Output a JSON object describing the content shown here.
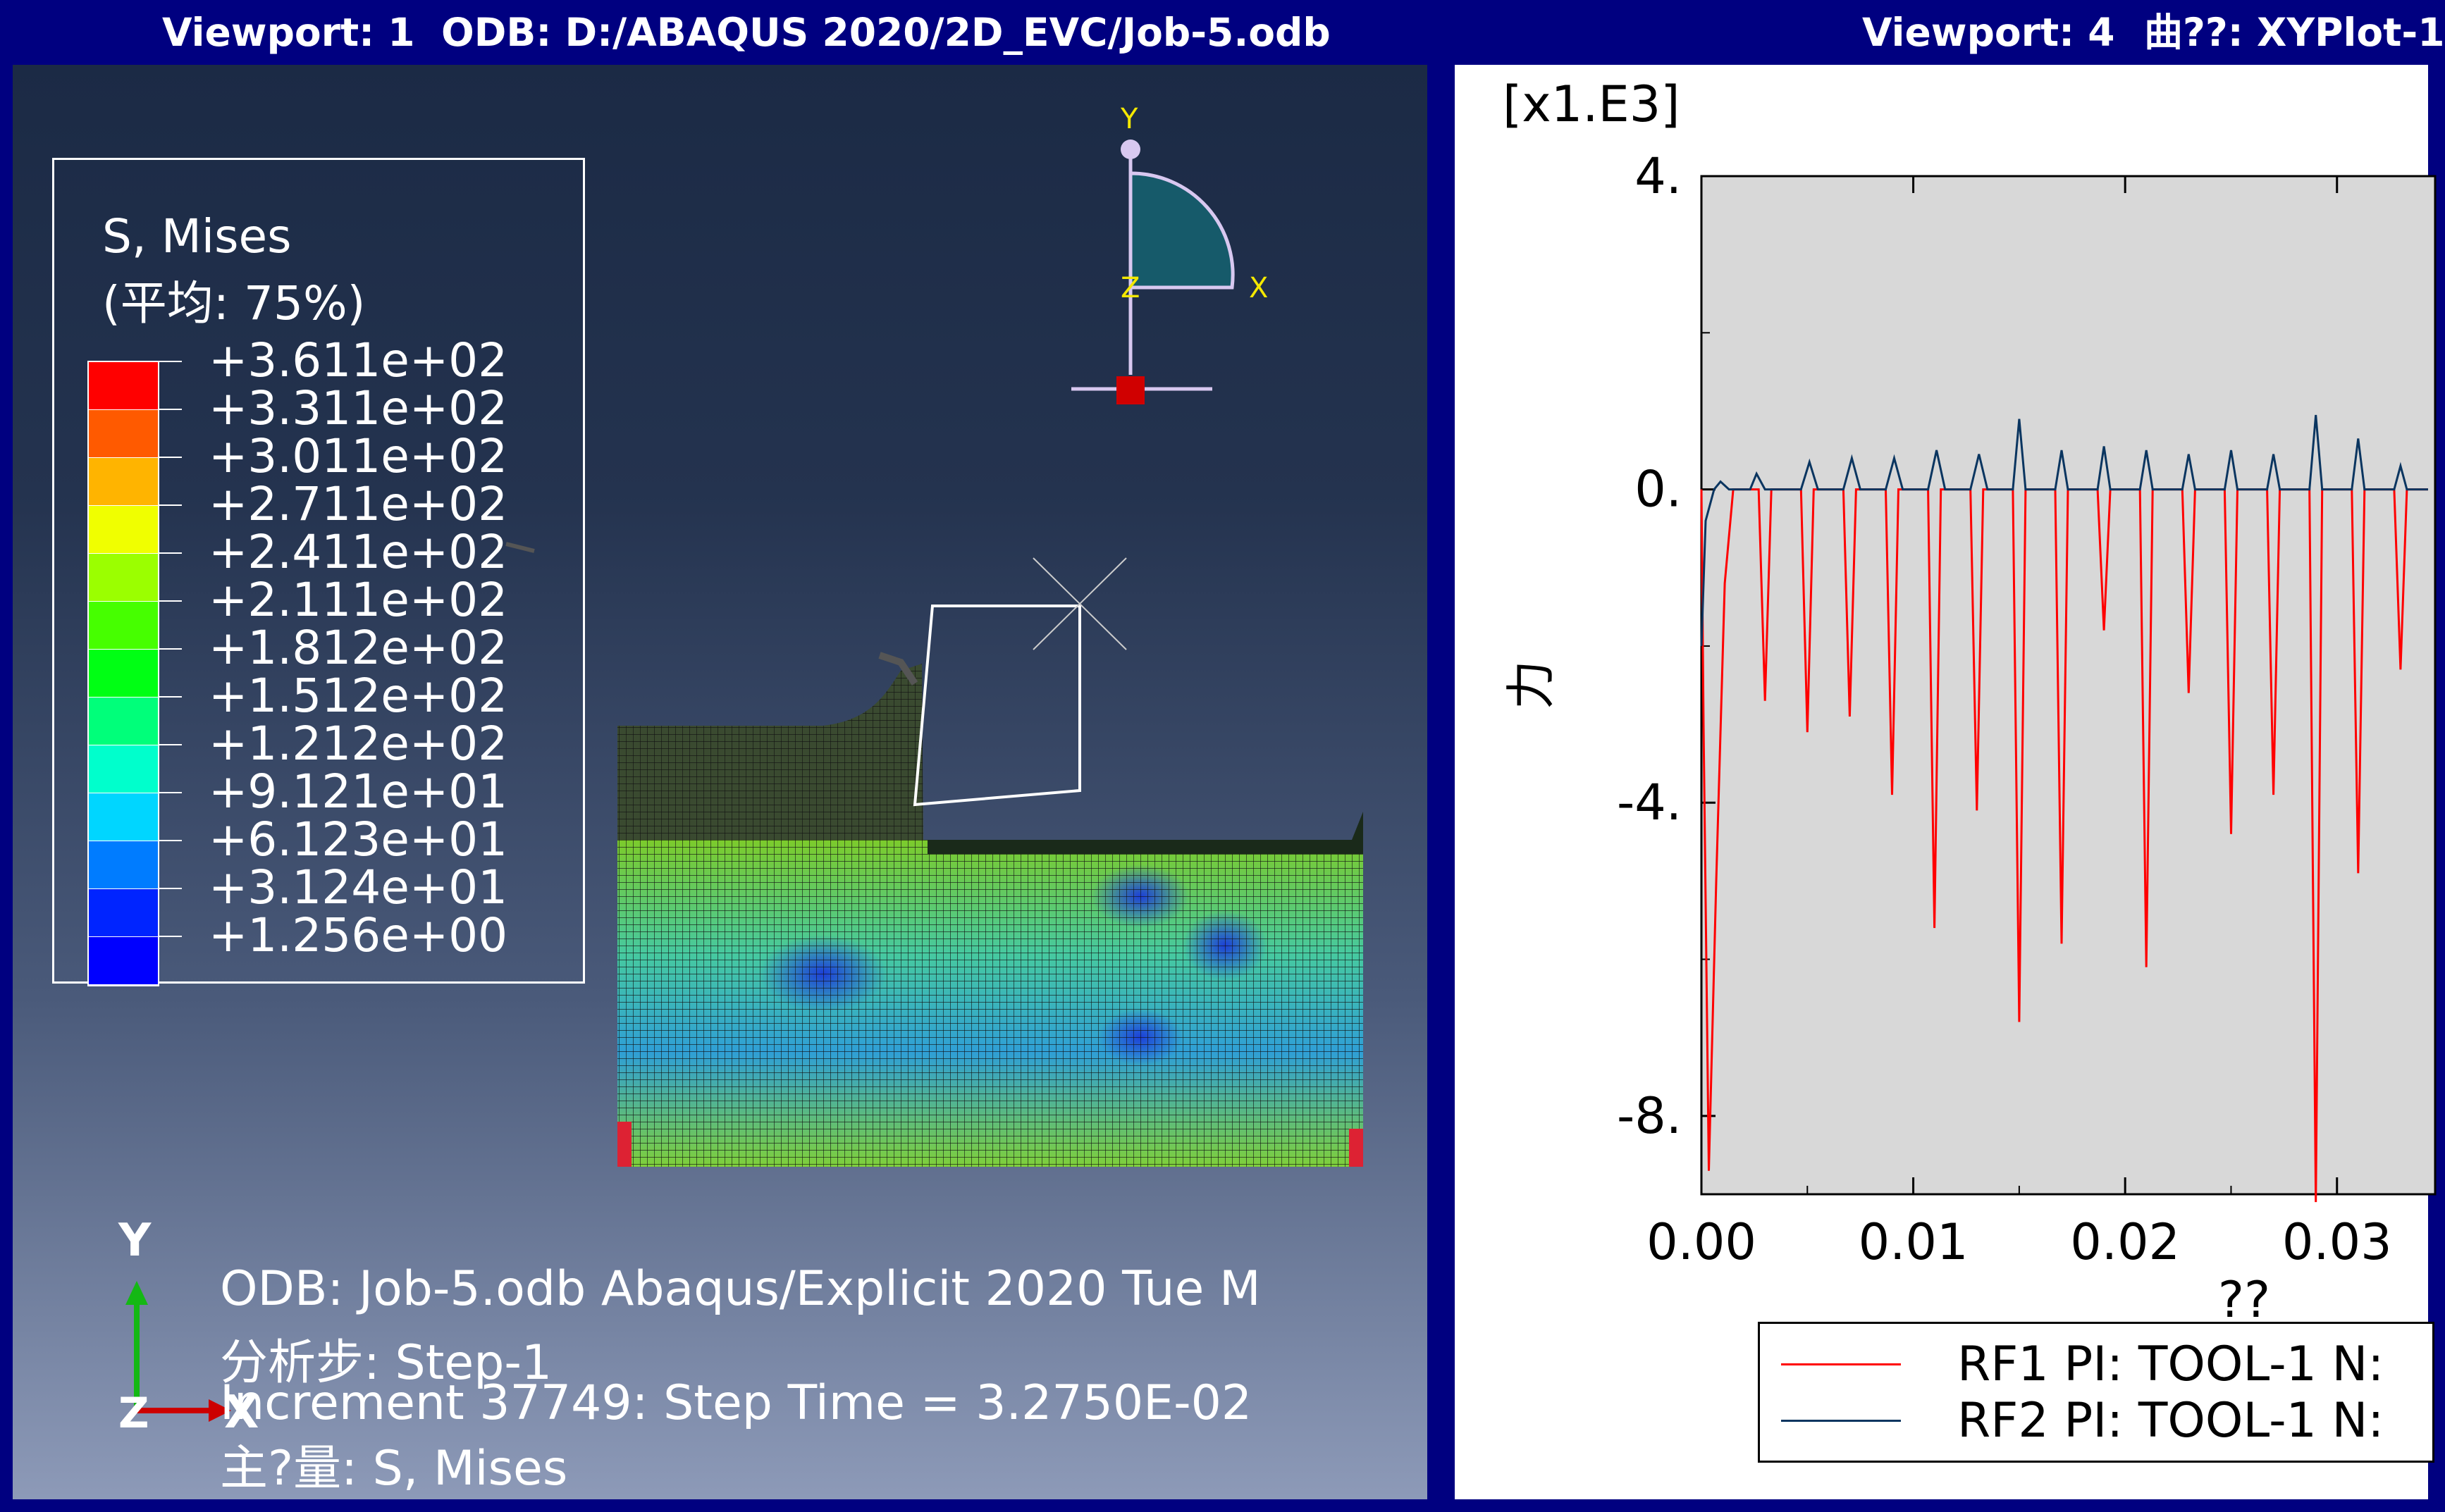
{
  "viewport1": {
    "title_vp": "Viewport: 1",
    "title_odb": "ODB: D:/ABAQUS 2020/2D_EVC/Job-5.odb",
    "legend": {
      "title": "S, Mises",
      "subtitle": "(平均: 75%)",
      "values": [
        "+3.611e+02",
        "+3.311e+02",
        "+3.011e+02",
        "+2.711e+02",
        "+2.411e+02",
        "+2.111e+02",
        "+1.812e+02",
        "+1.512e+02",
        "+1.212e+02",
        "+9.121e+01",
        "+6.123e+01",
        "+3.124e+01",
        "+1.256e+00"
      ],
      "colors": [
        "#ff0000",
        "#ff5a00",
        "#ffb400",
        "#f0ff00",
        "#9bff00",
        "#46ff00",
        "#00ff14",
        "#00ff7a",
        "#00ffcc",
        "#00d6ff",
        "#007cff",
        "#0024ff",
        "#0000ff"
      ]
    },
    "triad": {
      "y": "Y",
      "x": "X",
      "z": "Z"
    },
    "csys": {
      "y": "Y",
      "x": "X",
      "z": "Z"
    },
    "info": {
      "line1": "ODB: Job-5.odb    Abaqus/Explicit 2020    Tue M",
      "line2": "分析步: Step-1",
      "line3": "Increment    37749: Step Time =    3.2750E-02",
      "line4": "主?量: S, Mises"
    }
  },
  "viewport4": {
    "title_vp": "Viewport: 4",
    "title_plot": "曲??: XYPlot-1",
    "chart_data": {
      "type": "line",
      "y_multiplier_label": "[x1.E3]",
      "ylabel": "力",
      "xlabel": "??",
      "xlim": [
        0.0,
        0.0343
      ],
      "ylim": [
        -9.0,
        4.0
      ],
      "x_ticks": [
        "0.00",
        "0.01",
        "0.02",
        "0.03"
      ],
      "y_ticks": [
        "4.",
        "0.",
        "-4.",
        "-8."
      ],
      "series": [
        {
          "name": "RF1 PI: TOOL-1 N:",
          "color": "#ff0000",
          "x": [
            0.0,
            0.0001,
            0.00035,
            0.0007,
            0.0011,
            0.0015,
            0.0019,
            0.0023,
            0.0027,
            0.003,
            0.0033,
            0.0039,
            0.0047,
            0.005,
            0.0053,
            0.0059,
            0.0067,
            0.007,
            0.0073,
            0.0079,
            0.0087,
            0.009,
            0.0093,
            0.0099,
            0.0107,
            0.011,
            0.0113,
            0.0119,
            0.0127,
            0.013,
            0.0133,
            0.0139,
            0.0147,
            0.015,
            0.0153,
            0.0159,
            0.0167,
            0.017,
            0.0173,
            0.0179,
            0.0187,
            0.019,
            0.0193,
            0.0199,
            0.0207,
            0.021,
            0.0213,
            0.0219,
            0.0227,
            0.023,
            0.0233,
            0.0239,
            0.0247,
            0.025,
            0.0253,
            0.0259,
            0.0267,
            0.027,
            0.0273,
            0.0279,
            0.0287,
            0.029,
            0.0293,
            0.0299,
            0.0307,
            0.031,
            0.0313,
            0.0319,
            0.0327,
            0.033,
            0.0333,
            0.0343
          ],
          "y": [
            0.0,
            -3.0,
            -8.7,
            -5.0,
            -1.2,
            0.0,
            0.0,
            0.0,
            0.0,
            -2.7,
            0.0,
            0.0,
            0.0,
            -3.1,
            0.0,
            0.0,
            0.0,
            -2.9,
            0.0,
            0.0,
            0.0,
            -3.9,
            0.0,
            0.0,
            0.0,
            -5.6,
            0.0,
            0.0,
            0.0,
            -4.1,
            0.0,
            0.0,
            0.0,
            -6.8,
            0.0,
            0.0,
            0.0,
            -5.8,
            0.0,
            0.0,
            0.0,
            -1.8,
            0.0,
            0.0,
            0.0,
            -6.1,
            0.0,
            0.0,
            0.0,
            -2.6,
            0.0,
            0.0,
            0.0,
            -4.4,
            0.0,
            0.0,
            0.0,
            -3.9,
            0.0,
            0.0,
            0.0,
            -9.1,
            0.0,
            0.0,
            0.0,
            -4.9,
            0.0,
            0.0,
            0.0,
            -2.3,
            0.0,
            0.0
          ]
        },
        {
          "name": "RF2 PI: TOOL-1 N:",
          "color": "#0a3560",
          "x": [
            0.0,
            0.0002,
            0.0006,
            0.0009,
            0.0013,
            0.0019,
            0.0023,
            0.0026,
            0.003,
            0.0035,
            0.0043,
            0.0047,
            0.0051,
            0.0055,
            0.0063,
            0.0067,
            0.0071,
            0.0075,
            0.0083,
            0.0087,
            0.0091,
            0.0095,
            0.0103,
            0.0107,
            0.0111,
            0.0115,
            0.0123,
            0.0127,
            0.0131,
            0.0135,
            0.0143,
            0.0147,
            0.015,
            0.0153,
            0.0163,
            0.0167,
            0.017,
            0.0173,
            0.0183,
            0.0187,
            0.019,
            0.0193,
            0.0203,
            0.0207,
            0.021,
            0.0213,
            0.0223,
            0.0227,
            0.023,
            0.0233,
            0.0243,
            0.0247,
            0.025,
            0.0253,
            0.0263,
            0.0267,
            0.027,
            0.0273,
            0.0283,
            0.0287,
            0.029,
            0.0293,
            0.0303,
            0.0307,
            0.031,
            0.0313,
            0.0323,
            0.0327,
            0.033,
            0.0333,
            0.0343
          ],
          "y": [
            -2.0,
            -0.4,
            0.0,
            0.1,
            0.0,
            0.0,
            0.0,
            0.2,
            0.0,
            0.0,
            0.0,
            0.0,
            0.35,
            0.0,
            0.0,
            0.0,
            0.4,
            0.0,
            0.0,
            0.0,
            0.4,
            0.0,
            0.0,
            0.0,
            0.5,
            0.0,
            0.0,
            0.0,
            0.45,
            0.0,
            0.0,
            0.0,
            0.9,
            0.0,
            0.0,
            0.0,
            0.5,
            0.0,
            0.0,
            0.0,
            0.55,
            0.0,
            0.0,
            0.0,
            0.5,
            0.0,
            0.0,
            0.0,
            0.45,
            0.0,
            0.0,
            0.0,
            0.5,
            0.0,
            0.0,
            0.0,
            0.45,
            0.0,
            0.0,
            0.0,
            0.95,
            0.0,
            0.0,
            0.0,
            0.65,
            0.0,
            0.0,
            0.0,
            0.3,
            0.0,
            0.0
          ]
        }
      ]
    }
  }
}
